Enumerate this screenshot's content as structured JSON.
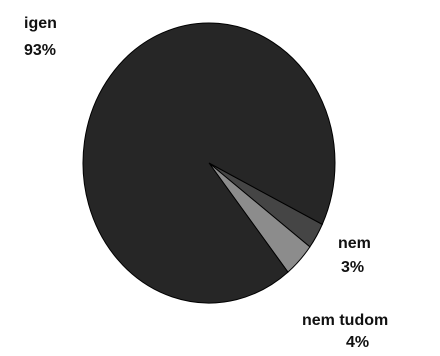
{
  "chart_data": {
    "type": "pie",
    "title": "",
    "legend": "none",
    "slices": [
      {
        "label": "igen",
        "percent_label": "93%",
        "value": 93,
        "color": "#262626"
      },
      {
        "label": "nem",
        "percent_label": "3%",
        "value": 3,
        "color": "#454545"
      },
      {
        "label": "nem tudom",
        "percent_label": "4%",
        "value": 4,
        "color": "#8c8c8c"
      }
    ]
  }
}
